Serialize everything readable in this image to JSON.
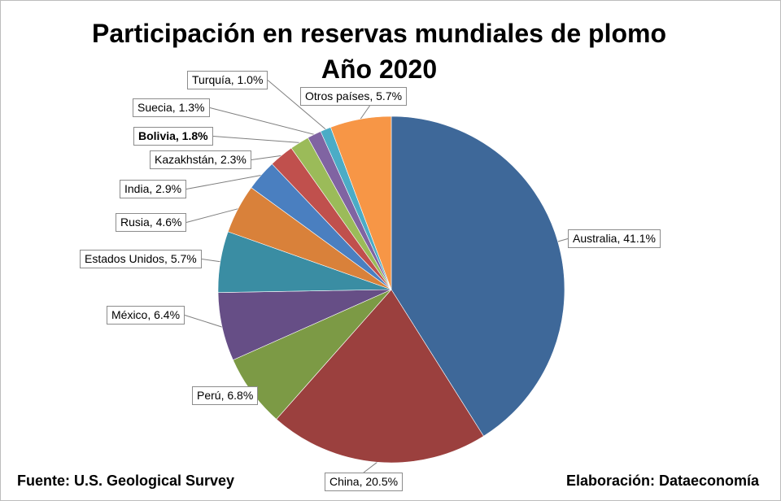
{
  "chart_data": {
    "type": "pie",
    "title": "Participación en reservas mundiales de plomo",
    "subtitle": "Año 2020",
    "unit": "%",
    "slices": [
      {
        "name": "Australia",
        "value": 41.1,
        "label": "Australia, 41.1%",
        "color": "#3E6899",
        "bold": false
      },
      {
        "name": "China",
        "value": 20.5,
        "label": "China, 20.5%",
        "color": "#9B403E",
        "bold": false
      },
      {
        "name": "Perú",
        "value": 6.8,
        "label": "Perú, 6.8%",
        "color": "#7C9A45",
        "bold": false
      },
      {
        "name": "México",
        "value": 6.4,
        "label": "México, 6.4%",
        "color": "#664E86",
        "bold": false
      },
      {
        "name": "Estados Unidos",
        "value": 5.7,
        "label": "Estados Unidos, 5.7%",
        "color": "#3A8DA3",
        "bold": false
      },
      {
        "name": "Rusia",
        "value": 4.6,
        "label": "Rusia, 4.6%",
        "color": "#D9813A",
        "bold": false
      },
      {
        "name": "India",
        "value": 2.9,
        "label": "India, 2.9%",
        "color": "#4A7FC0",
        "bold": false
      },
      {
        "name": "Kazakhstán",
        "value": 2.3,
        "label": "Kazakhstán, 2.3%",
        "color": "#C0504D",
        "bold": false
      },
      {
        "name": "Bolivia",
        "value": 1.8,
        "label": "Bolivia, 1.8%",
        "color": "#9BBB59",
        "bold": true
      },
      {
        "name": "Suecia",
        "value": 1.3,
        "label": "Suecia, 1.3%",
        "color": "#8064A2",
        "bold": false
      },
      {
        "name": "Turquía",
        "value": 1.0,
        "label": "Turquía, 1.0%",
        "color": "#4BACC6",
        "bold": false
      },
      {
        "name": "Otros países",
        "value": 5.7,
        "label": "Otros países, 5.7%",
        "color": "#F79646",
        "bold": false
      }
    ],
    "start_angle": "12 o'clock",
    "direction": "clockwise",
    "legend": "none"
  },
  "footer": {
    "source": "Fuente: U.S. Geological Survey",
    "credit": "Elaboración: Dataeconomía"
  }
}
